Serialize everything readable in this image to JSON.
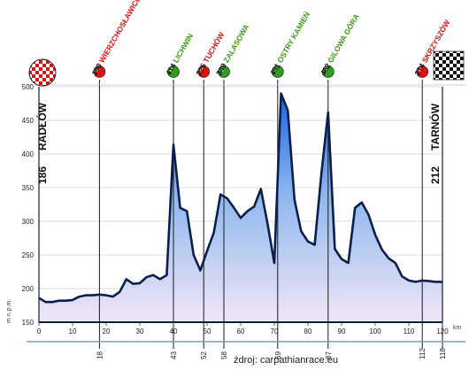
{
  "chart_data": {
    "type": "area",
    "ylabel": "m n.p.m.",
    "xunit": "km",
    "ylim": [
      150,
      500
    ],
    "xlim": [
      0,
      120
    ],
    "yticks": [
      150,
      200,
      250,
      300,
      350,
      400,
      450,
      500
    ],
    "xticks": [
      0,
      10,
      20,
      30,
      40,
      50,
      60,
      70,
      80,
      90,
      100,
      110,
      120
    ],
    "grid": true,
    "profile": {
      "x": [
        0,
        2,
        4,
        6,
        8,
        10,
        12,
        14,
        16,
        18,
        20,
        22,
        24,
        26,
        28,
        30,
        32,
        34,
        36,
        38,
        40,
        42,
        44,
        46,
        48,
        50,
        52,
        54,
        56,
        58,
        60,
        62,
        64,
        66,
        68,
        70,
        72,
        74,
        76,
        78,
        80,
        82,
        84,
        86,
        88,
        90,
        92,
        94,
        96,
        98,
        100,
        102,
        104,
        106,
        108,
        110,
        112,
        114,
        116,
        118,
        120
      ],
      "y": [
        186,
        180,
        180,
        182,
        182,
        183,
        188,
        190,
        190,
        191,
        190,
        188,
        195,
        214,
        207,
        208,
        217,
        220,
        214,
        220,
        414,
        320,
        315,
        250,
        227,
        256,
        283,
        340,
        334,
        320,
        305,
        315,
        322,
        348,
        296,
        238,
        490,
        465,
        332,
        285,
        270,
        265,
        371,
        462,
        259,
        244,
        238,
        320,
        328,
        310,
        280,
        258,
        245,
        238,
        218,
        212,
        210,
        212,
        211,
        210,
        210
      ]
    },
    "waypoints": [
      {
        "label": "190 WIERZCHOSŁAWICE",
        "color": "red",
        "km": 18,
        "km_label": "18"
      },
      {
        "label": "414 LICHWIN",
        "color": "green",
        "km": 40,
        "km_label": "43"
      },
      {
        "label": "225 TUCHÓW",
        "color": "red",
        "km": 49,
        "km_label": "52"
      },
      {
        "label": "349 ZALASOWA",
        "color": "green",
        "km": 55,
        "km_label": "58"
      },
      {
        "label": "491 OSTRY KAMIEŃ",
        "color": "green",
        "km": 71,
        "km_label": "69"
      },
      {
        "label": "462 GILOWA GÓRA",
        "color": "green",
        "km": 86,
        "km_label": "87"
      },
      {
        "label": "214 SKRZYSZÓW",
        "color": "red",
        "km": 114,
        "km_label": "112"
      }
    ],
    "end_km_label": "118",
    "start": {
      "elevation": "186",
      "name": "RADŁÓW"
    },
    "finish": {
      "elevation": "212",
      "name": "TARNÓW"
    }
  },
  "source_text": "źdroj: carpathianrace.eu",
  "colors": {
    "red": "#e01010",
    "green": "#2e9e1a",
    "label_red": "#d41515",
    "label_green": "#3f9a14",
    "outline": "#0b1f4a",
    "fill_top": "#1d63e0",
    "fill_bottom": "#f2e6f7"
  }
}
